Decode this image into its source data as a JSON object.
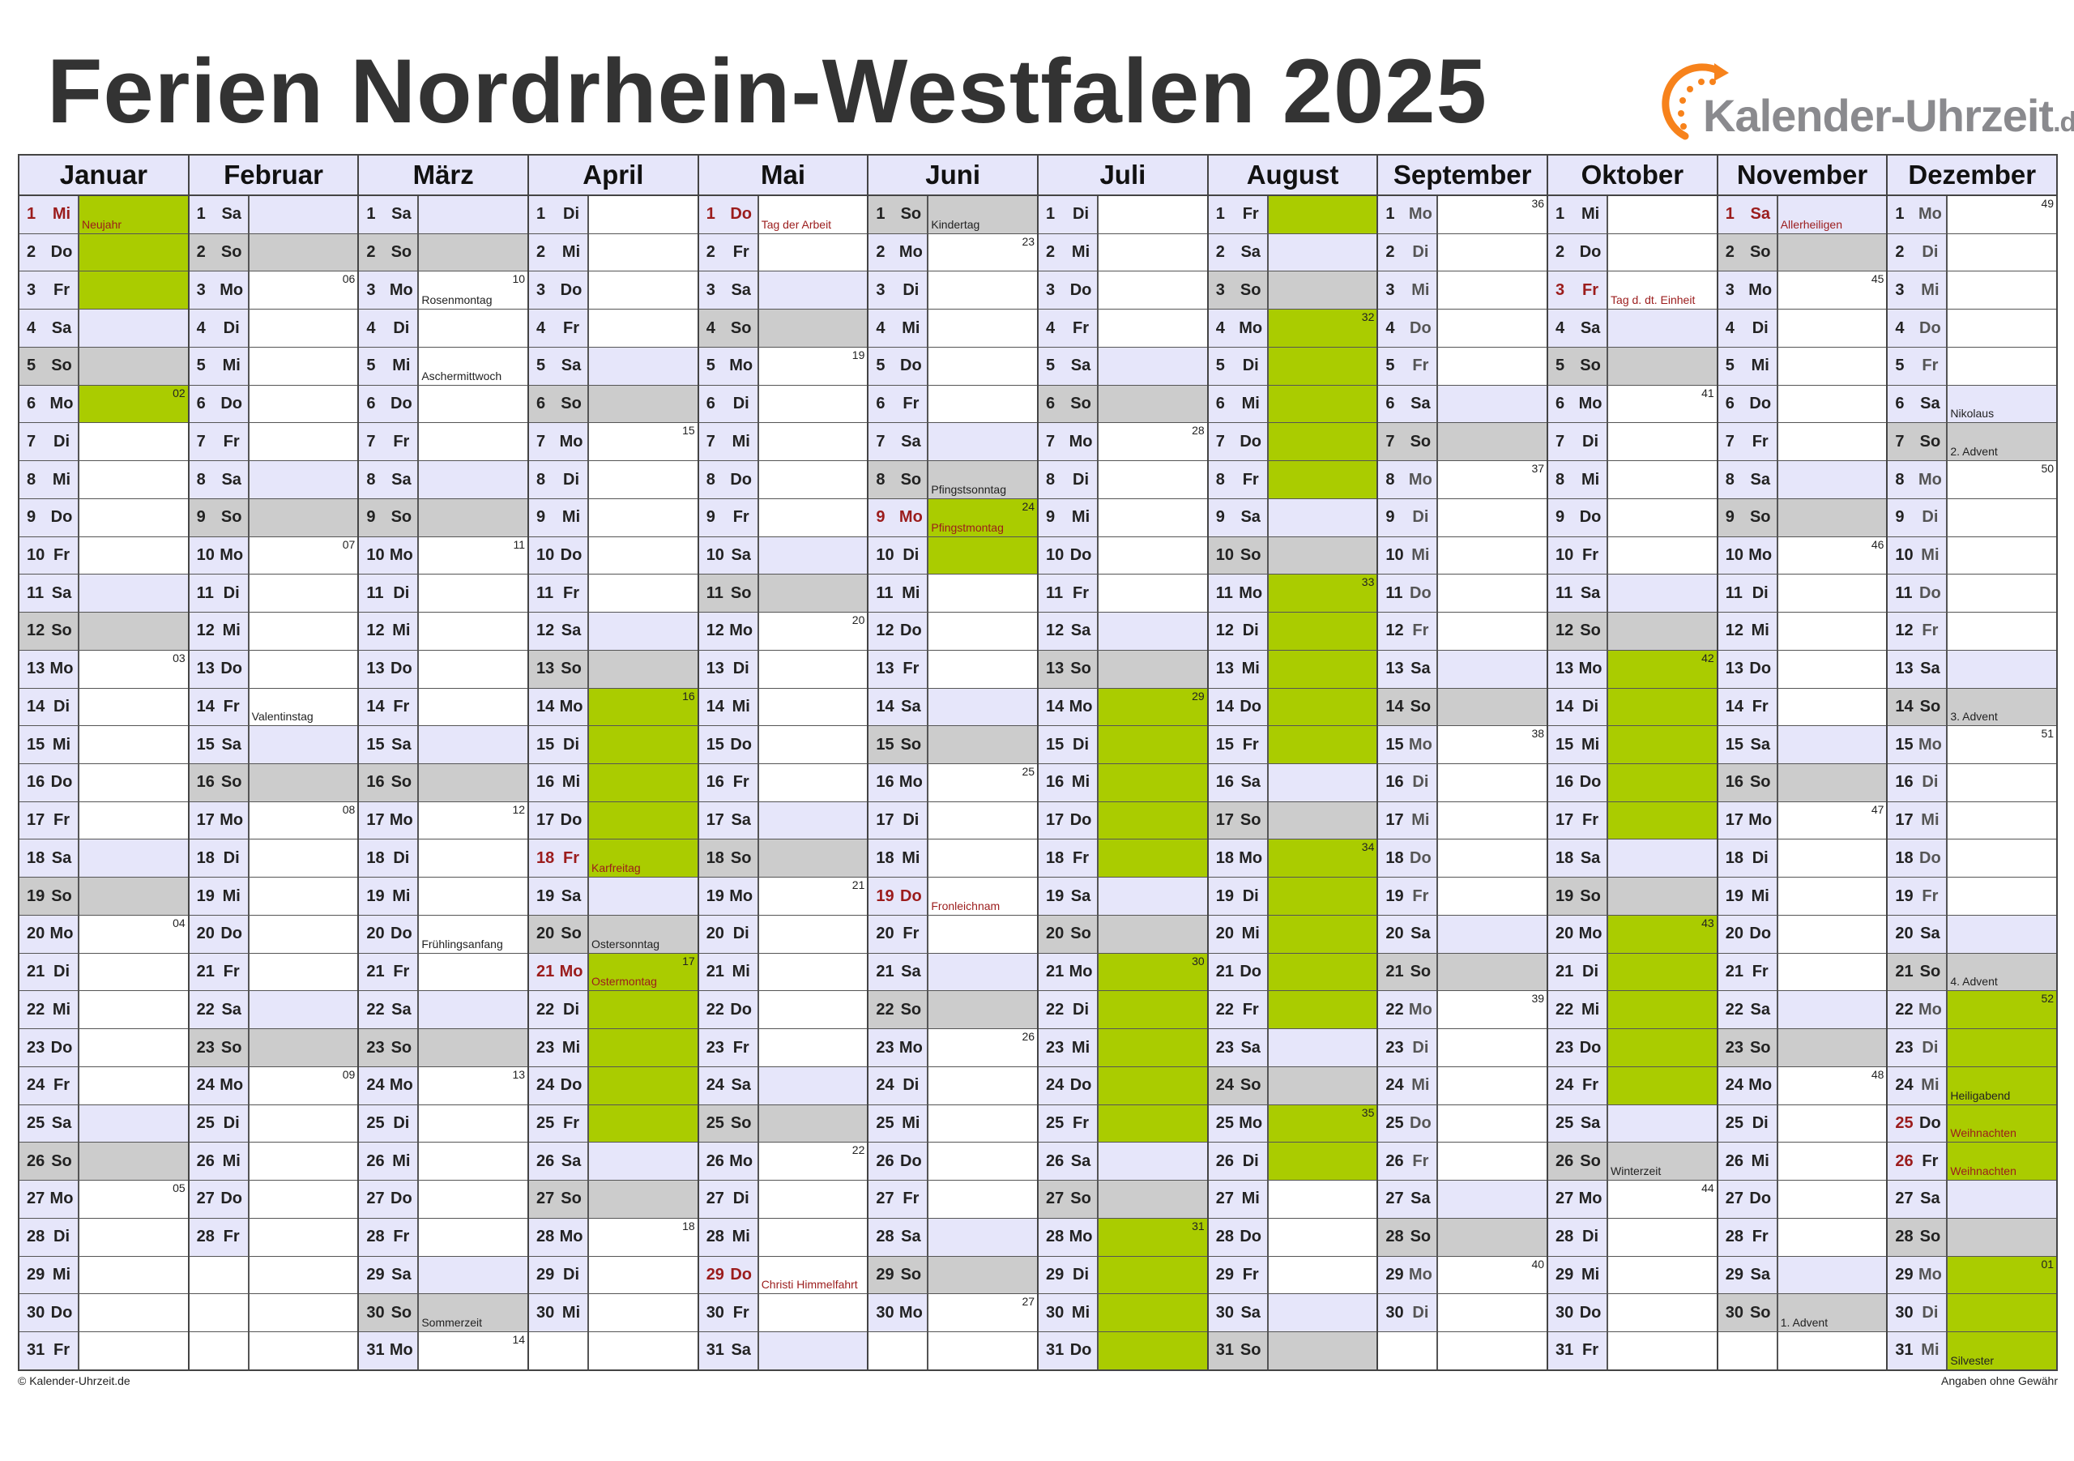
{
  "title": "Ferien Nordrhein-Westfalen 2025",
  "logo": {
    "text": "Kalender-Uhrzeit",
    "suffix": ".de"
  },
  "footer": {
    "left": "© Kalender-Uhrzeit.de",
    "right": "Angaben ohne Gewähr"
  },
  "colors": {
    "saturday": "#e6e6fa",
    "sunday": "#cccccc",
    "ferien": "#aacc00",
    "holiday_text": "#9b1c1c",
    "header": "#e6e6fa"
  },
  "weekdays": [
    "Mo",
    "Di",
    "Mi",
    "Do",
    "Fr",
    "Sa",
    "So"
  ],
  "months": [
    {
      "name": "Januar",
      "days": 31,
      "first_weekday": 2,
      "ferien": [
        1,
        2,
        3,
        6
      ],
      "holidays": [
        1
      ],
      "notes": {
        "1": "Neujahr"
      },
      "weeks": {
        "6": "02",
        "13": "03",
        "20": "04",
        "27": "05"
      }
    },
    {
      "name": "Februar",
      "days": 28,
      "first_weekday": 5,
      "ferien": [],
      "holidays": [],
      "notes": {
        "14": "Valentinstag"
      },
      "weeks": {
        "3": "06",
        "10": "07",
        "17": "08",
        "24": "09"
      }
    },
    {
      "name": "März",
      "days": 31,
      "first_weekday": 5,
      "ferien": [],
      "holidays": [],
      "notes": {
        "3": "Rosenmontag",
        "5": "Aschermittwoch",
        "20": "Frühlingsanfang",
        "30": "Sommerzeit"
      },
      "weeks": {
        "3": "10",
        "10": "11",
        "17": "12",
        "24": "13",
        "31": "14"
      }
    },
    {
      "name": "April",
      "days": 30,
      "first_weekday": 1,
      "ferien": [
        14,
        15,
        16,
        17,
        18,
        21,
        22,
        23,
        24,
        25
      ],
      "holidays": [
        18,
        21
      ],
      "notes": {
        "18": "Karfreitag",
        "20": "Ostersonntag",
        "21": "Ostermontag"
      },
      "weeks": {
        "7": "15",
        "14": "16",
        "21": "17",
        "28": "18"
      }
    },
    {
      "name": "Mai",
      "days": 31,
      "first_weekday": 3,
      "ferien": [],
      "holidays": [
        1,
        29
      ],
      "notes": {
        "1": "Tag der Arbeit",
        "29": "Christi Himmelfahrt"
      },
      "weeks": {
        "5": "19",
        "12": "20",
        "19": "21",
        "26": "22"
      }
    },
    {
      "name": "Juni",
      "days": 30,
      "first_weekday": 6,
      "ferien": [
        9,
        10
      ],
      "holidays": [
        9,
        19
      ],
      "notes": {
        "1": "Kindertag",
        "8": "Pfingstsonntag",
        "9": "Pfingstmontag",
        "19": "Fronleichnam"
      },
      "weeks": {
        "2": "23",
        "9": "24",
        "16": "25",
        "23": "26",
        "30": "27"
      }
    },
    {
      "name": "Juli",
      "days": 31,
      "first_weekday": 1,
      "ferien": [
        14,
        15,
        16,
        17,
        18,
        21,
        22,
        23,
        24,
        25,
        28,
        29,
        30,
        31
      ],
      "holidays": [],
      "notes": {},
      "weeks": {
        "7": "28",
        "14": "29",
        "21": "30",
        "28": "31"
      }
    },
    {
      "name": "August",
      "days": 31,
      "first_weekday": 4,
      "ferien": [
        1,
        4,
        5,
        6,
        7,
        8,
        11,
        12,
        13,
        14,
        15,
        18,
        19,
        20,
        21,
        22,
        25,
        26
      ],
      "holidays": [],
      "notes": {},
      "weeks": {
        "4": "32",
        "11": "33",
        "18": "34",
        "25": "35"
      }
    },
    {
      "name": "September",
      "days": 30,
      "first_weekday": 0,
      "ferien": [],
      "holidays": [],
      "muted_weekdays": true,
      "notes": {},
      "weeks": {
        "1": "36",
        "8": "37",
        "15": "38",
        "22": "39",
        "29": "40"
      }
    },
    {
      "name": "Oktober",
      "days": 31,
      "first_weekday": 2,
      "ferien": [
        13,
        14,
        15,
        16,
        17,
        20,
        21,
        22,
        23,
        24
      ],
      "holidays": [
        3
      ],
      "notes": {
        "3": "Tag d. dt. Einheit",
        "26": "Winterzeit"
      },
      "weeks": {
        "6": "41",
        "13": "42",
        "20": "43",
        "27": "44"
      }
    },
    {
      "name": "November",
      "days": 30,
      "first_weekday": 5,
      "ferien": [],
      "holidays": [
        1
      ],
      "notes": {
        "1": "Allerheiligen",
        "30": "1. Advent"
      },
      "weeks": {
        "3": "45",
        "10": "46",
        "17": "47",
        "24": "48"
      }
    },
    {
      "name": "Dezember",
      "days": 31,
      "first_weekday": 0,
      "ferien": [
        22,
        23,
        24,
        25,
        26,
        29,
        30,
        31
      ],
      "holidays": [
        25,
        26
      ],
      "muted_weekdays": true,
      "notes": {
        "6": "Nikolaus",
        "7": "2. Advent",
        "14": "3. Advent",
        "21": "4. Advent",
        "24": "Heiligabend",
        "25": "Weihnachten",
        "26": "Weihnachten",
        "31": "Silvester"
      },
      "weeks": {
        "1": "49",
        "8": "50",
        "15": "51",
        "22": "52",
        "29": "01"
      }
    }
  ]
}
